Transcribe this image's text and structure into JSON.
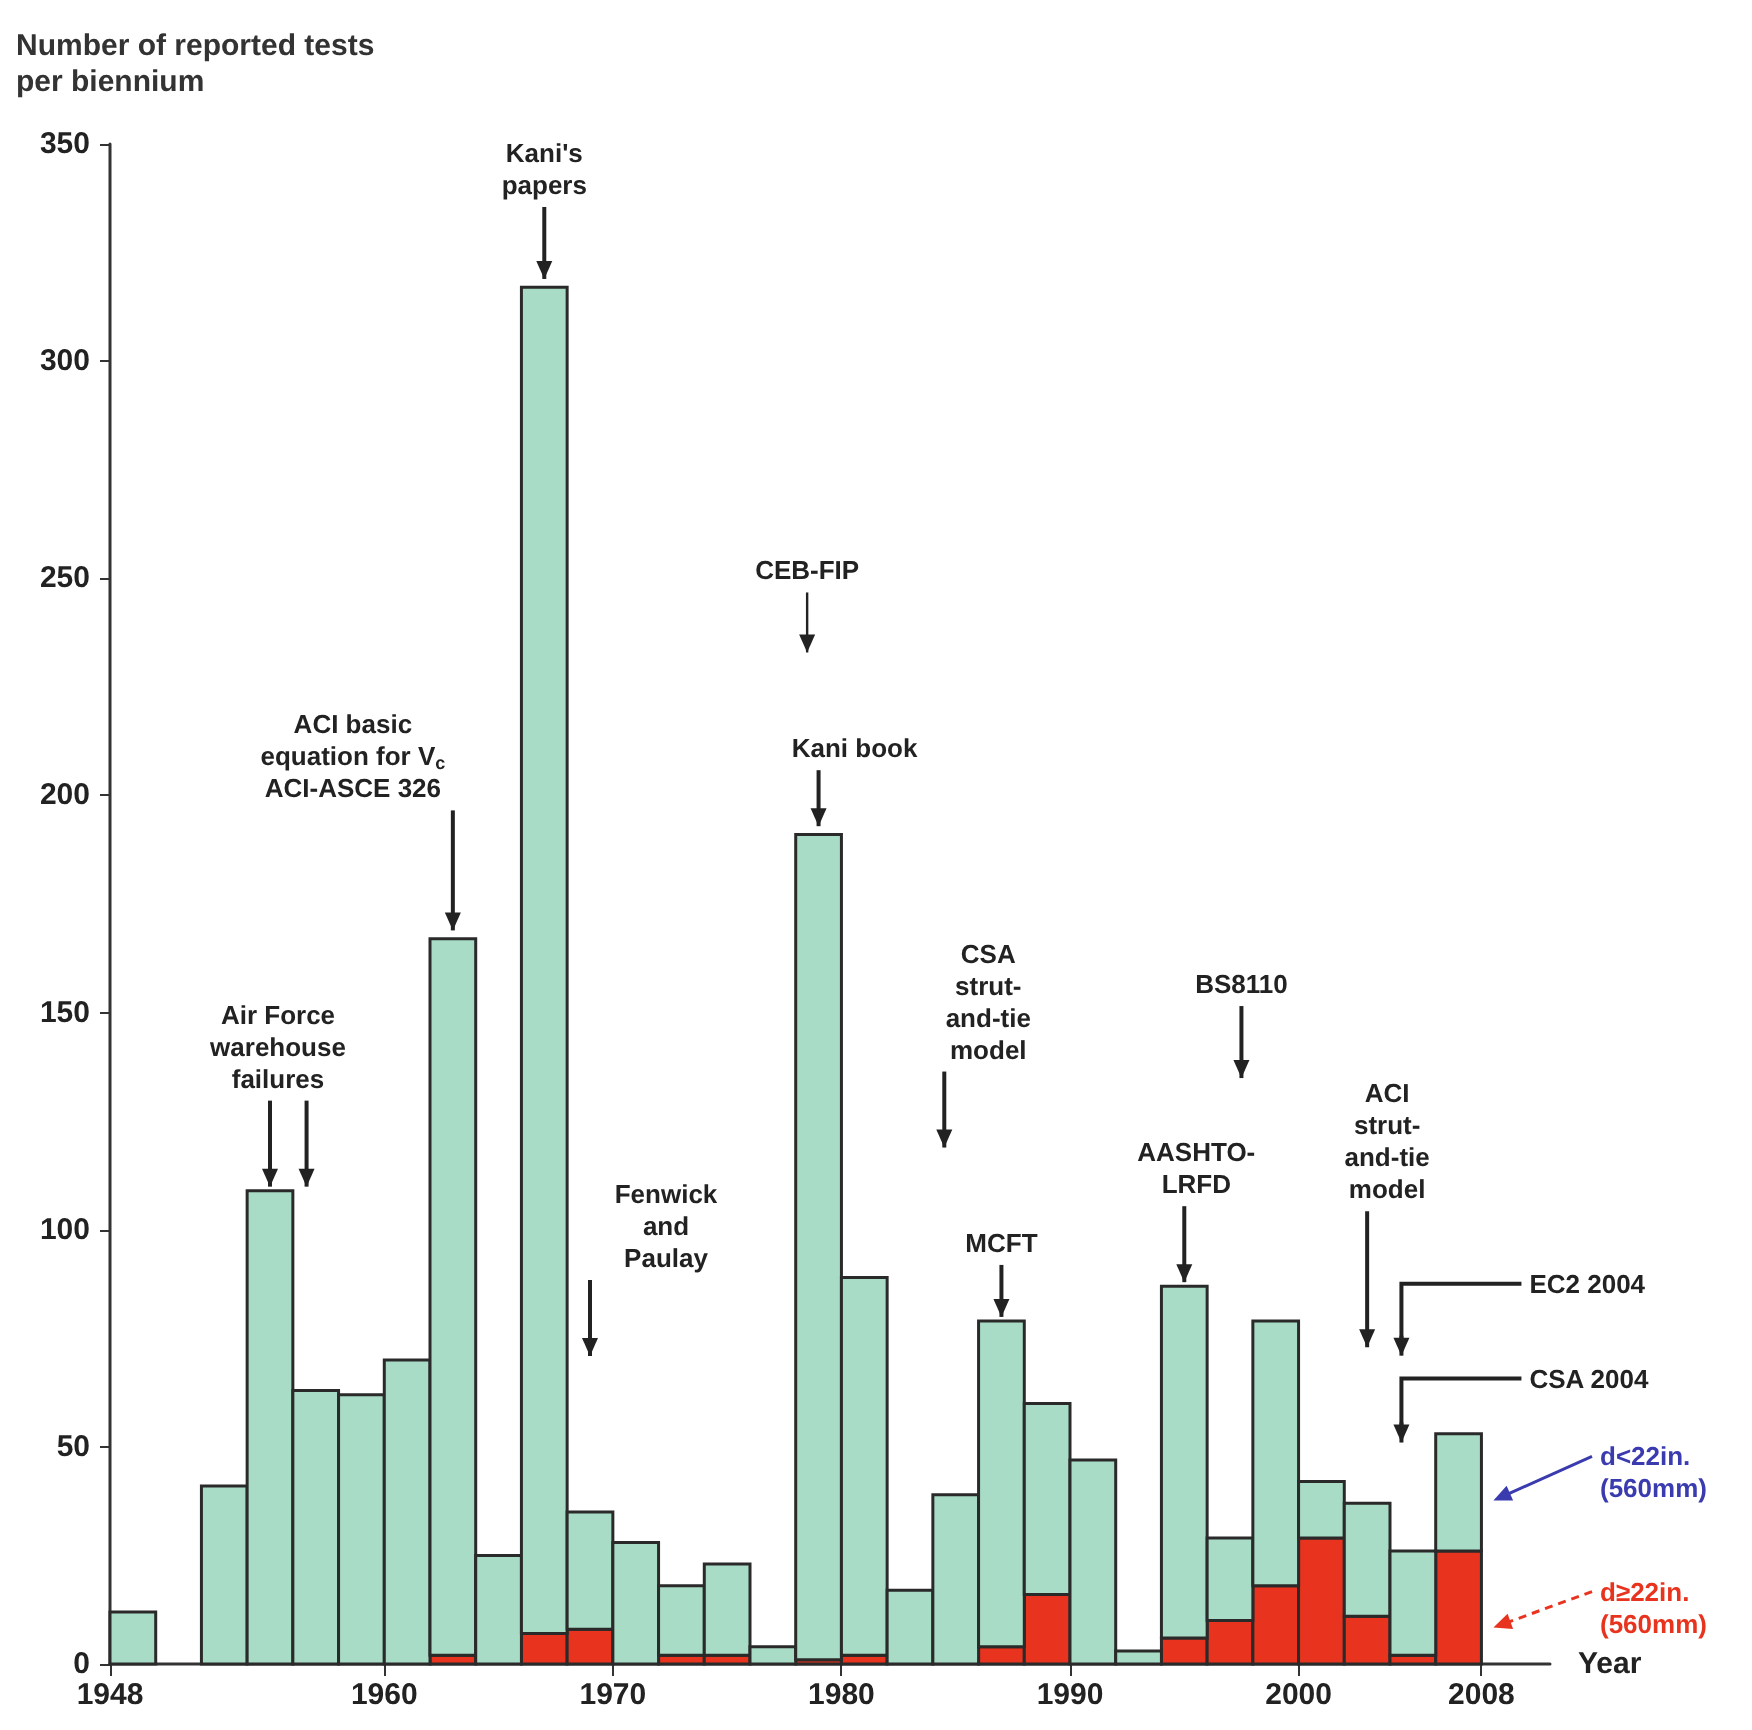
{
  "chart_data": {
    "type": "bar",
    "stacked": true,
    "ylabel": "Number of reported tests per biennium",
    "xlabel": "Year",
    "x": [
      1949,
      1951,
      1953,
      1955,
      1957,
      1959,
      1961,
      1963,
      1965,
      1967,
      1969,
      1971,
      1973,
      1975,
      1977,
      1979,
      1981,
      1983,
      1985,
      1987,
      1989,
      1991,
      1993,
      1995,
      1997,
      1999,
      2001,
      2003,
      2005,
      2007
    ],
    "series": [
      {
        "name": "d≥22in. (560mm)",
        "color": "#e8341e",
        "values": [
          0,
          0,
          0,
          0,
          0,
          0,
          0,
          2,
          0,
          7,
          8,
          0,
          2,
          2,
          0,
          1,
          2,
          0,
          0,
          4,
          16,
          0,
          0,
          6,
          10,
          18,
          29,
          11,
          2,
          26
        ]
      },
      {
        "name": "d<22in. (560mm)",
        "color": "#a8dcc6",
        "values": [
          12,
          0,
          41,
          109,
          63,
          62,
          70,
          165,
          25,
          310,
          27,
          28,
          16,
          21,
          4,
          190,
          87,
          17,
          39,
          75,
          44,
          47,
          3,
          81,
          19,
          61,
          13,
          26,
          24,
          27
        ]
      }
    ],
    "xlim": [
      1948,
      2011
    ],
    "xticks": [
      1948,
      1960,
      1970,
      1980,
      1990,
      2000,
      2008
    ],
    "ylim": [
      0,
      350
    ],
    "yticks": [
      0,
      50,
      100,
      150,
      200,
      250,
      300,
      350
    ],
    "grid": false,
    "legend": "right",
    "annotations": [
      {
        "text": "Air Force warehouse failures",
        "x": 1955,
        "y": 109
      },
      {
        "text": "ACI basic equation for V$_{c}$ ACI-ASCE 326",
        "x": 1963,
        "y": 168
      },
      {
        "text": "Kani's papers",
        "x": 1967,
        "y": 318
      },
      "Fenwick and Paulay",
      "CEB-FIP",
      {
        "text": "Kani book",
        "x": 1979,
        "y": 192
      },
      "CSA strut-and-tie model",
      {
        "text": "MCFT",
        "x": 1987,
        "y": 79
      },
      "BS8110",
      {
        "text": "AASHTO-LRFD",
        "x": 1995,
        "y": 87
      },
      "ACI strut-and-tie model",
      "EC2 2004",
      "CSA 2004"
    ]
  }
}
